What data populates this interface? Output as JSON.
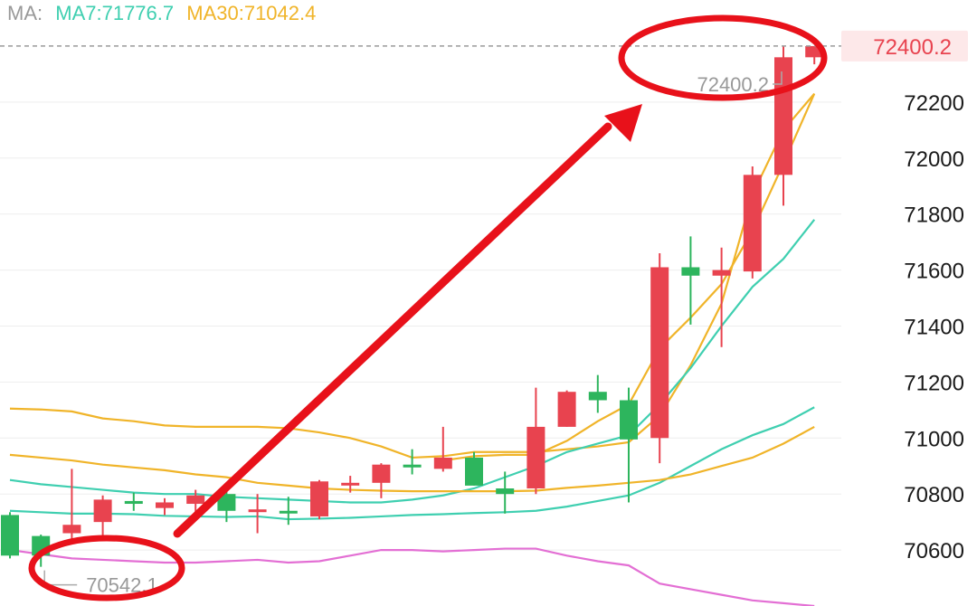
{
  "legend": {
    "prefix": "MA:",
    "ma7": "MA7:71776.7",
    "ma30": "MA30:71042.4"
  },
  "current_price": "72400.2",
  "high_label": "72400.2",
  "low_label": "70542.1",
  "colors": {
    "up": "#e8434f",
    "down": "#2db55d",
    "ma7": "#3fcfb0",
    "ma30": "#f0b429",
    "ma_short": "#f0b429",
    "bb_upper": "#f0b429",
    "bb_mid": "#3fcfb0",
    "bb_lower": "#e36fd4",
    "annotation": "#e8111a",
    "grid": "#eeeeee",
    "price_line": "#9a9a9a",
    "price_tag_bg": "#fde8e9"
  },
  "chart_data": {
    "type": "candlestick",
    "ylim": [
      70400,
      72500
    ],
    "yticks": [
      70600,
      70800,
      71000,
      71200,
      71400,
      71600,
      71800,
      72000,
      72200
    ],
    "ytick_labels": [
      "70600",
      "70800",
      "71000",
      "71200",
      "71400",
      "71600",
      "71800",
      "72000",
      "72200"
    ],
    "candles": [
      {
        "o": 70725,
        "h": 70735,
        "l": 70570,
        "c": 70580
      },
      {
        "o": 70650,
        "h": 70655,
        "l": 70540,
        "c": 70580
      },
      {
        "o": 70660,
        "h": 70890,
        "l": 70640,
        "c": 70690
      },
      {
        "o": 70700,
        "h": 70795,
        "l": 70650,
        "c": 70780
      },
      {
        "o": 70775,
        "h": 70805,
        "l": 70740,
        "c": 70765
      },
      {
        "o": 70750,
        "h": 70785,
        "l": 70725,
        "c": 70770
      },
      {
        "o": 70765,
        "h": 70815,
        "l": 70735,
        "c": 70795
      },
      {
        "o": 70800,
        "h": 70815,
        "l": 70700,
        "c": 70740
      },
      {
        "o": 70740,
        "h": 70800,
        "l": 70660,
        "c": 70745
      },
      {
        "o": 70740,
        "h": 70790,
        "l": 70690,
        "c": 70735
      },
      {
        "o": 70720,
        "h": 70850,
        "l": 70710,
        "c": 70845
      },
      {
        "o": 70835,
        "h": 70865,
        "l": 70805,
        "c": 70840
      },
      {
        "o": 70840,
        "h": 70910,
        "l": 70785,
        "c": 70905
      },
      {
        "o": 70905,
        "h": 70960,
        "l": 70870,
        "c": 70895
      },
      {
        "o": 70890,
        "h": 71040,
        "l": 70880,
        "c": 70930
      },
      {
        "o": 70930,
        "h": 70950,
        "l": 70830,
        "c": 70830
      },
      {
        "o": 70820,
        "h": 70880,
        "l": 70730,
        "c": 70800
      },
      {
        "o": 70820,
        "h": 71180,
        "l": 70800,
        "c": 71040
      },
      {
        "o": 71040,
        "h": 71170,
        "l": 71040,
        "c": 71165
      },
      {
        "o": 71165,
        "h": 71225,
        "l": 71090,
        "c": 71135
      },
      {
        "o": 71135,
        "h": 71180,
        "l": 70770,
        "c": 70995
      },
      {
        "o": 71000,
        "h": 71660,
        "l": 70910,
        "c": 71610
      },
      {
        "o": 71610,
        "h": 71720,
        "l": 71405,
        "c": 71580
      },
      {
        "o": 71580,
        "h": 71680,
        "l": 71325,
        "c": 71600
      },
      {
        "o": 71595,
        "h": 71970,
        "l": 71570,
        "c": 71940
      },
      {
        "o": 71940,
        "h": 72400,
        "l": 71830,
        "c": 72360
      },
      {
        "o": 72360,
        "h": 72400,
        "l": 72335,
        "c": 72400
      }
    ],
    "ma_short": [
      null,
      null,
      null,
      null,
      null,
      null,
      null,
      null,
      null,
      null,
      null,
      null,
      null,
      null,
      70920,
      70935,
      70940,
      70940,
      70990,
      71060,
      71120,
      71320,
      71430,
      71550,
      71740,
      71980,
      72230
    ],
    "bb_upper": [
      71105,
      71102,
      71095,
      71070,
      71060,
      71045,
      71040,
      71040,
      71040,
      71035,
      71020,
      71000,
      70970,
      70930,
      70935,
      70950,
      70950,
      70950,
      70960,
      70970,
      70985,
      71080,
      71260,
      71480,
      71870,
      72100,
      72230
    ],
    "bb_mid": [
      70850,
      70835,
      70825,
      70815,
      70805,
      70800,
      70800,
      70790,
      70785,
      70780,
      70775,
      70770,
      70770,
      70780,
      70795,
      70820,
      70860,
      70900,
      70950,
      70980,
      71010,
      71120,
      71250,
      71400,
      71540,
      71640,
      71780
    ],
    "bb_lower": [
      70600,
      70585,
      70570,
      70565,
      70560,
      70555,
      70555,
      70560,
      70565,
      70555,
      70560,
      70580,
      70600,
      70600,
      70595,
      70600,
      70605,
      70605,
      70580,
      70560,
      70545,
      70480,
      70460,
      70440,
      70420,
      70410,
      70400
    ],
    "ma30_line": [
      70740,
      70735,
      70730,
      70730,
      70728,
      70722,
      70720,
      70718,
      70720,
      70710,
      70712,
      70715,
      70720,
      70725,
      70728,
      70732,
      70735,
      70740,
      70755,
      70775,
      70795,
      70840,
      70900,
      70960,
      71010,
      71050,
      71110
    ],
    "ma30_2": [
      70940,
      70930,
      70920,
      70905,
      70895,
      70885,
      70870,
      70860,
      70840,
      70830,
      70820,
      70815,
      70812,
      70810,
      70810,
      70810,
      70810,
      70812,
      70822,
      70830,
      70840,
      70850,
      70870,
      70900,
      70930,
      70980,
      71040
    ]
  }
}
